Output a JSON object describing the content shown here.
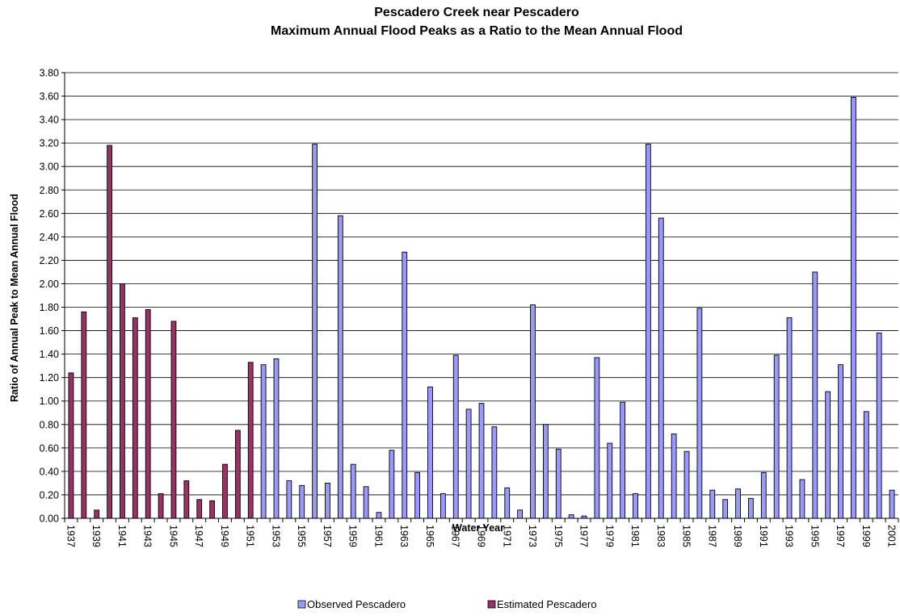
{
  "chart_data": {
    "type": "bar",
    "title": "Pescadero Creek near Pescadero",
    "subtitle": "Maximum Annual Flood Peaks as a Ratio to the Mean Annual Flood",
    "xlabel": "Water Year",
    "ylabel": "Ratio of Annual Peak to Mean Annual Flood",
    "ylim": [
      0,
      3.8
    ],
    "ytick_step": 0.2,
    "grid": true,
    "legend_position": "bottom",
    "categories": [
      1937,
      1938,
      1939,
      1940,
      1941,
      1942,
      1943,
      1944,
      1945,
      1946,
      1947,
      1948,
      1949,
      1950,
      1951,
      1952,
      1953,
      1954,
      1955,
      1956,
      1957,
      1958,
      1959,
      1960,
      1961,
      1962,
      1963,
      1964,
      1965,
      1966,
      1967,
      1968,
      1969,
      1970,
      1971,
      1972,
      1973,
      1974,
      1975,
      1976,
      1977,
      1978,
      1979,
      1980,
      1981,
      1982,
      1983,
      1984,
      1985,
      1986,
      1987,
      1988,
      1989,
      1990,
      1991,
      1992,
      1993,
      1994,
      1995,
      1996,
      1997,
      1998,
      1999,
      2000,
      2001
    ],
    "tick_labels": [
      "1937",
      "1939",
      "1941",
      "1943",
      "1945",
      "1947",
      "1949",
      "1951",
      "1953",
      "1955",
      "1957",
      "1959",
      "1961",
      "1963",
      "1965",
      "1967",
      "1969",
      "1971",
      "1973",
      "1975",
      "1977",
      "1979",
      "1981",
      "1983",
      "1985",
      "1987",
      "1989",
      "1991",
      "1993",
      "1995",
      "1997",
      "1999",
      "2001"
    ],
    "series": [
      {
        "name": "Observed Pescadero",
        "color": "#9999ff",
        "values": [
          null,
          null,
          null,
          null,
          null,
          null,
          null,
          null,
          null,
          null,
          null,
          null,
          null,
          null,
          null,
          1.31,
          1.36,
          0.32,
          0.28,
          3.19,
          0.3,
          2.58,
          0.46,
          0.27,
          0.05,
          0.58,
          2.27,
          0.39,
          1.12,
          0.21,
          1.39,
          0.93,
          0.98,
          0.78,
          0.26,
          0.07,
          1.82,
          0.8,
          0.59,
          0.03,
          0.02,
          1.37,
          0.64,
          0.99,
          0.21,
          3.19,
          2.56,
          0.72,
          0.57,
          1.79,
          0.24,
          0.16,
          0.25,
          0.17,
          0.39,
          1.39,
          1.71,
          0.33,
          2.1,
          1.08,
          1.31,
          3.59,
          0.91,
          1.58,
          0.24
        ]
      },
      {
        "name": "Estimated Pescadero",
        "color": "#993366",
        "values": [
          1.24,
          1.76,
          0.07,
          3.18,
          2.0,
          1.71,
          1.78,
          0.21,
          1.68,
          0.32,
          0.16,
          0.15,
          0.46,
          0.75,
          1.33,
          null,
          null,
          null,
          null,
          null,
          null,
          null,
          null,
          null,
          null,
          null,
          null,
          null,
          null,
          null,
          null,
          null,
          null,
          null,
          null,
          null,
          null,
          null,
          null,
          null,
          null,
          null,
          null,
          null,
          null,
          null,
          null,
          null,
          null,
          null,
          null,
          null,
          null,
          null,
          null,
          null,
          null,
          null,
          null,
          null,
          null,
          null,
          null,
          null,
          null
        ]
      }
    ]
  }
}
